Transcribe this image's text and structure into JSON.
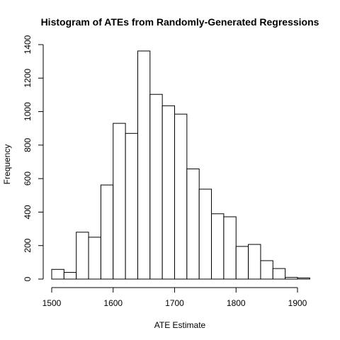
{
  "chart_data": {
    "type": "bar",
    "title": "Histogram of ATEs from Randomly-Generated Regressions",
    "xlabel": "ATE Estimate",
    "ylabel": "Frequency",
    "bin_width": 20,
    "x": [
      1510,
      1530,
      1550,
      1570,
      1590,
      1610,
      1630,
      1650,
      1670,
      1690,
      1710,
      1730,
      1750,
      1770,
      1790,
      1810,
      1830,
      1850,
      1870,
      1890,
      1910
    ],
    "values": [
      58,
      40,
      280,
      250,
      562,
      930,
      870,
      1362,
      1103,
      1035,
      985,
      658,
      537,
      390,
      372,
      195,
      207,
      110,
      63,
      10,
      7
    ],
    "xticks": [
      1500,
      1600,
      1700,
      1800,
      1900
    ],
    "yticks": [
      0,
      200,
      400,
      600,
      800,
      1000,
      1200,
      1400
    ],
    "xlim": [
      1500,
      1920
    ],
    "ylim": [
      0,
      1400
    ],
    "grid": false,
    "legend": "none"
  }
}
